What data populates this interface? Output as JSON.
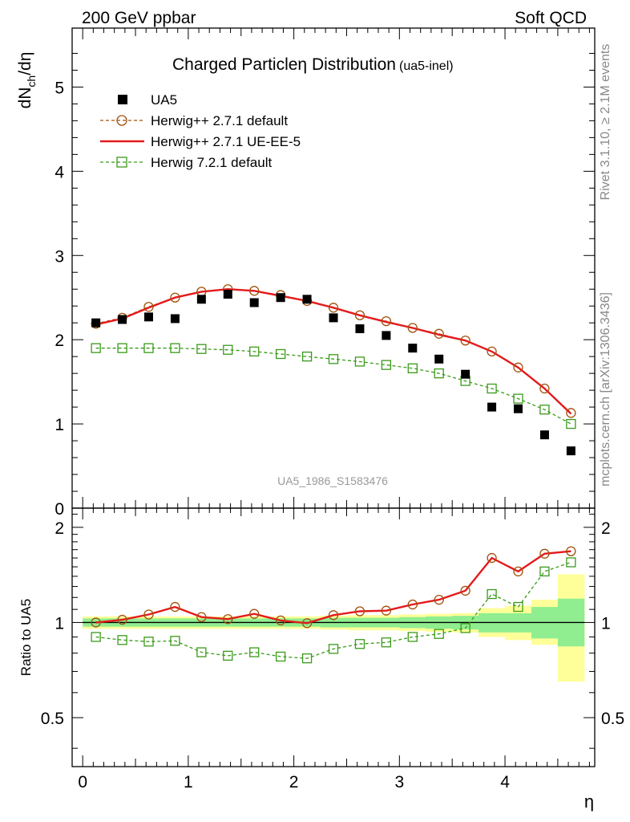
{
  "header": {
    "left": "200 GeV ppbar",
    "right": "Soft QCD"
  },
  "title": {
    "main": "Charged Particle",
    "symbol": "η",
    "tail": " Distribution",
    "suffix": "(ua5-inel)"
  },
  "axis": {
    "ylabel_top": {
      "base": "dN",
      "sub": "ch",
      "tail": "/dη"
    },
    "ylabel_bottom": "Ratio to UA5",
    "xlabel": "η"
  },
  "side_text": {
    "rivet": "Rivet 3.1.10, ≥ 2.1M events",
    "mcplots": "mcplots.cern.ch [arXiv:1306.3436]"
  },
  "analysis_label": "UA5_1986_S1583476",
  "colors": {
    "data": "#000000",
    "herwigpp_default": "#a0500a",
    "herwigpp_ueee5": "#e41a1c",
    "herwig721": "#3a9a1a",
    "band_inner": "#90ee90",
    "band_outer": "#ffff99"
  },
  "chart_data": {
    "type": "scatter",
    "top": {
      "xlim": [
        -0.1,
        4.85
      ],
      "ylim": [
        0,
        5.7
      ],
      "x_ticks": [
        "0",
        "1",
        "2",
        "3",
        "4"
      ],
      "y_ticks": [
        "0",
        "1",
        "2",
        "3",
        "4",
        "5"
      ],
      "legend_position": "top-left"
    },
    "bottom": {
      "xlim": [
        -0.1,
        4.85
      ],
      "ylim": [
        0.35,
        2.3
      ],
      "y_ticks": [
        "0.5",
        "1",
        "2"
      ],
      "y_tick_values": [
        0.5,
        1,
        2
      ]
    },
    "x": [
      0.125,
      0.375,
      0.625,
      0.875,
      1.125,
      1.375,
      1.625,
      1.875,
      2.125,
      2.375,
      2.625,
      2.875,
      3.125,
      3.375,
      3.625,
      3.875,
      4.125,
      4.375,
      4.625
    ],
    "series": [
      {
        "name": "UA5",
        "style": "square-marker",
        "values": [
          2.2,
          2.24,
          2.27,
          2.25,
          2.48,
          2.54,
          2.44,
          2.5,
          2.48,
          2.26,
          2.13,
          2.05,
          1.9,
          1.77,
          1.59,
          1.2,
          1.18,
          0.87,
          0.68
        ],
        "ratio": [
          1,
          1,
          1,
          1,
          1,
          1,
          1,
          1,
          1,
          1,
          1,
          1,
          1,
          1,
          1,
          1,
          1,
          1,
          1
        ]
      },
      {
        "name": "Herwig++ 2.7.1 default",
        "style": "dashed-open-circle",
        "values": [
          2.19,
          2.26,
          2.39,
          2.5,
          2.57,
          2.6,
          2.58,
          2.53,
          2.46,
          2.38,
          2.29,
          2.22,
          2.14,
          2.07,
          1.99,
          1.86,
          1.67,
          1.42,
          1.13
        ],
        "ratio": [
          1.0,
          1.02,
          1.06,
          1.12,
          1.04,
          1.025,
          1.065,
          1.015,
          0.995,
          1.055,
          1.085,
          1.09,
          1.14,
          1.18,
          1.26,
          1.6,
          1.45,
          1.65,
          1.68
        ]
      },
      {
        "name": "Herwig++ 2.7.1 UE-EE-5",
        "style": "solid-line",
        "values": [
          2.18,
          2.25,
          2.38,
          2.5,
          2.57,
          2.6,
          2.58,
          2.52,
          2.46,
          2.38,
          2.29,
          2.21,
          2.14,
          2.06,
          1.99,
          1.86,
          1.67,
          1.42,
          1.12
        ],
        "ratio": [
          1.0,
          1.02,
          1.06,
          1.12,
          1.04,
          1.025,
          1.065,
          1.015,
          0.995,
          1.055,
          1.085,
          1.09,
          1.14,
          1.18,
          1.26,
          1.6,
          1.45,
          1.65,
          1.68
        ]
      },
      {
        "name": "Herwig 7.2.1 default",
        "style": "dashed-open-square",
        "values": [
          1.9,
          1.9,
          1.9,
          1.9,
          1.89,
          1.88,
          1.86,
          1.83,
          1.8,
          1.77,
          1.74,
          1.7,
          1.66,
          1.6,
          1.51,
          1.42,
          1.3,
          1.17,
          1.0
        ],
        "ratio": [
          0.9,
          0.88,
          0.87,
          0.875,
          0.805,
          0.785,
          0.805,
          0.78,
          0.77,
          0.825,
          0.855,
          0.865,
          0.9,
          0.92,
          0.96,
          1.23,
          1.12,
          1.45,
          1.55
        ]
      }
    ],
    "bands": {
      "inner": [
        [
          0.97,
          1.03
        ],
        [
          0.97,
          1.03
        ],
        [
          0.97,
          1.03
        ],
        [
          0.97,
          1.03
        ],
        [
          0.97,
          1.03
        ],
        [
          0.97,
          1.03
        ],
        [
          0.97,
          1.03
        ],
        [
          0.97,
          1.03
        ],
        [
          0.97,
          1.03
        ],
        [
          0.965,
          1.035
        ],
        [
          0.965,
          1.035
        ],
        [
          0.965,
          1.035
        ],
        [
          0.96,
          1.04
        ],
        [
          0.955,
          1.045
        ],
        [
          0.95,
          1.05
        ],
        [
          0.93,
          1.07
        ],
        [
          0.93,
          1.07
        ],
        [
          0.89,
          1.12
        ],
        [
          0.84,
          1.19
        ]
      ],
      "outer": [
        [
          0.955,
          1.045
        ],
        [
          0.955,
          1.045
        ],
        [
          0.955,
          1.045
        ],
        [
          0.955,
          1.045
        ],
        [
          0.955,
          1.045
        ],
        [
          0.955,
          1.045
        ],
        [
          0.955,
          1.045
        ],
        [
          0.955,
          1.045
        ],
        [
          0.955,
          1.045
        ],
        [
          0.95,
          1.05
        ],
        [
          0.945,
          1.055
        ],
        [
          0.945,
          1.055
        ],
        [
          0.94,
          1.06
        ],
        [
          0.935,
          1.065
        ],
        [
          0.93,
          1.07
        ],
        [
          0.9,
          1.11
        ],
        [
          0.88,
          1.13
        ],
        [
          0.85,
          1.18
        ],
        [
          0.65,
          1.42
        ]
      ]
    }
  }
}
